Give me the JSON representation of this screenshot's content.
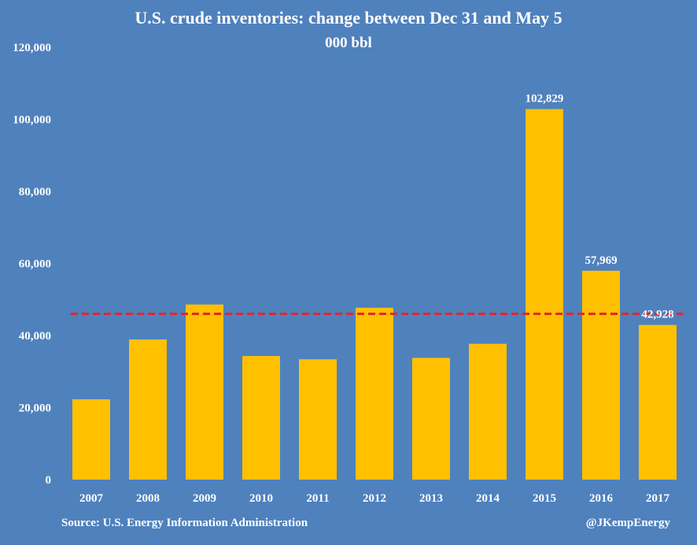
{
  "chart_data": {
    "type": "bar",
    "title": "U.S. crude inventories: change between Dec 31 and May 5",
    "subtitle": "000 bbl",
    "xlabel": "",
    "ylabel": "",
    "categories": [
      "2007",
      "2008",
      "2009",
      "2010",
      "2011",
      "2012",
      "2013",
      "2014",
      "2015",
      "2016",
      "2017"
    ],
    "values": [
      22300,
      38900,
      48600,
      34300,
      33400,
      47700,
      33800,
      37700,
      102829,
      57969,
      42928
    ],
    "data_labels": {
      "8": "102,829",
      "9": "57,969",
      "10": "42,928"
    },
    "ylim": [
      0,
      120000
    ],
    "yticks": [
      0,
      20000,
      40000,
      60000,
      80000,
      100000,
      120000
    ],
    "ytick_labels": [
      "0",
      "20,000",
      "40,000",
      "60,000",
      "80,000",
      "100,000",
      "120,000"
    ],
    "reference_line": {
      "value": 46000,
      "style": "dashed"
    },
    "grid": false,
    "colors": {
      "background": "#4f81bd",
      "bar": "#ffc000",
      "reference_line": "#e3262b",
      "text": "#ffffff"
    }
  },
  "footer": {
    "source": "Source: U.S. Energy Information Administration",
    "credit": "@JKempEnergy"
  }
}
